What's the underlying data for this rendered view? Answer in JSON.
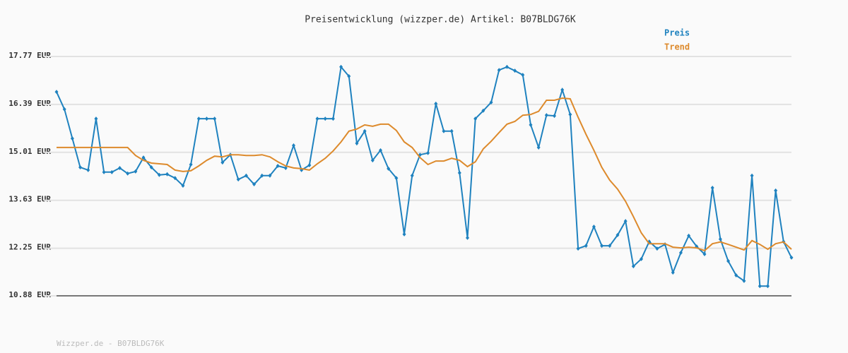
{
  "chart_data": {
    "type": "line",
    "title": "Preisentwicklung (wizzper.de) Artikel: B07BLDG76K",
    "footer": "Wizzper.de - B07BLDG76K",
    "categories": [
      null,
      null,
      null,
      null,
      null,
      null,
      null,
      null,
      null,
      null,
      null,
      null,
      null,
      null,
      null,
      null,
      null,
      null,
      null,
      null,
      null,
      null,
      null,
      null,
      null,
      null,
      null,
      null,
      null,
      null,
      null,
      null,
      null,
      null,
      null,
      null,
      null,
      null,
      null,
      null,
      null,
      null,
      null,
      null,
      null,
      null,
      null,
      null,
      null,
      null,
      null,
      null,
      null,
      null,
      null,
      null,
      null,
      null,
      null,
      null,
      null,
      null,
      null,
      null,
      null,
      null,
      null,
      null,
      null,
      null,
      null,
      null,
      null,
      null,
      null,
      null,
      null,
      null,
      null,
      null,
      null,
      null,
      null,
      null,
      null,
      null,
      null,
      null,
      null,
      null,
      null,
      null,
      null,
      null
    ],
    "ylim": [
      10.88,
      17.77
    ],
    "yticks": [
      {
        "value": 10.88,
        "label": "10.88 EUR"
      },
      {
        "value": 12.25,
        "label": "12.25 EUR"
      },
      {
        "value": 13.63,
        "label": "13.63 EUR"
      },
      {
        "value": 15.01,
        "label": "15.01 EUR"
      },
      {
        "value": 16.39,
        "label": "16.39 EUR"
      },
      {
        "value": 17.77,
        "label": "17.77 EUR"
      }
    ],
    "grid": true,
    "series": [
      {
        "name": "Preis",
        "color": "#1f82bf",
        "markers": true,
        "values": [
          16.75,
          16.25,
          15.41,
          14.58,
          14.5,
          15.98,
          14.44,
          14.44,
          14.56,
          14.4,
          14.46,
          14.86,
          14.58,
          14.36,
          14.38,
          14.27,
          14.05,
          14.66,
          15.98,
          15.98,
          15.98,
          14.72,
          14.94,
          14.23,
          14.34,
          14.09,
          14.34,
          14.34,
          14.62,
          14.56,
          15.21,
          14.5,
          14.64,
          15.98,
          15.98,
          15.98,
          17.47,
          17.2,
          15.27,
          15.62,
          14.78,
          15.07,
          14.54,
          14.27,
          12.65,
          14.34,
          14.94,
          14.99,
          16.41,
          15.62,
          15.62,
          14.42,
          12.55,
          15.98,
          16.21,
          16.45,
          17.38,
          17.47,
          17.36,
          17.24,
          15.8,
          15.15,
          16.08,
          16.06,
          16.81,
          16.1,
          12.24,
          12.32,
          12.87,
          12.32,
          12.32,
          12.63,
          13.03,
          11.73,
          11.94,
          12.44,
          12.24,
          12.36,
          11.55,
          12.12,
          12.61,
          12.3,
          12.08,
          13.99,
          12.51,
          11.88,
          11.47,
          11.31,
          14.34,
          11.16,
          11.16,
          13.91,
          12.44,
          11.98
        ]
      },
      {
        "name": "Trend",
        "color": "#dd8a2c",
        "markers": false,
        "values": [
          15.15,
          15.15,
          15.15,
          15.15,
          15.15,
          15.15,
          15.15,
          15.15,
          15.15,
          15.15,
          14.92,
          14.78,
          14.7,
          14.68,
          14.66,
          14.5,
          14.46,
          14.48,
          14.62,
          14.78,
          14.9,
          14.88,
          14.94,
          14.94,
          14.92,
          14.92,
          14.94,
          14.88,
          14.74,
          14.62,
          14.56,
          14.54,
          14.5,
          14.68,
          14.84,
          15.05,
          15.31,
          15.62,
          15.68,
          15.8,
          15.76,
          15.82,
          15.82,
          15.64,
          15.31,
          15.15,
          14.86,
          14.66,
          14.76,
          14.76,
          14.84,
          14.78,
          14.6,
          14.74,
          15.11,
          15.33,
          15.58,
          15.82,
          15.9,
          16.08,
          16.1,
          16.19,
          16.51,
          16.51,
          16.57,
          16.55,
          16.02,
          15.53,
          15.07,
          14.58,
          14.21,
          13.95,
          13.6,
          13.16,
          12.69,
          12.38,
          12.38,
          12.38,
          12.28,
          12.26,
          12.28,
          12.26,
          12.18,
          12.38,
          12.43,
          12.36,
          12.28,
          12.2,
          12.47,
          12.36,
          12.22,
          12.38,
          12.43,
          12.22
        ]
      }
    ]
  }
}
